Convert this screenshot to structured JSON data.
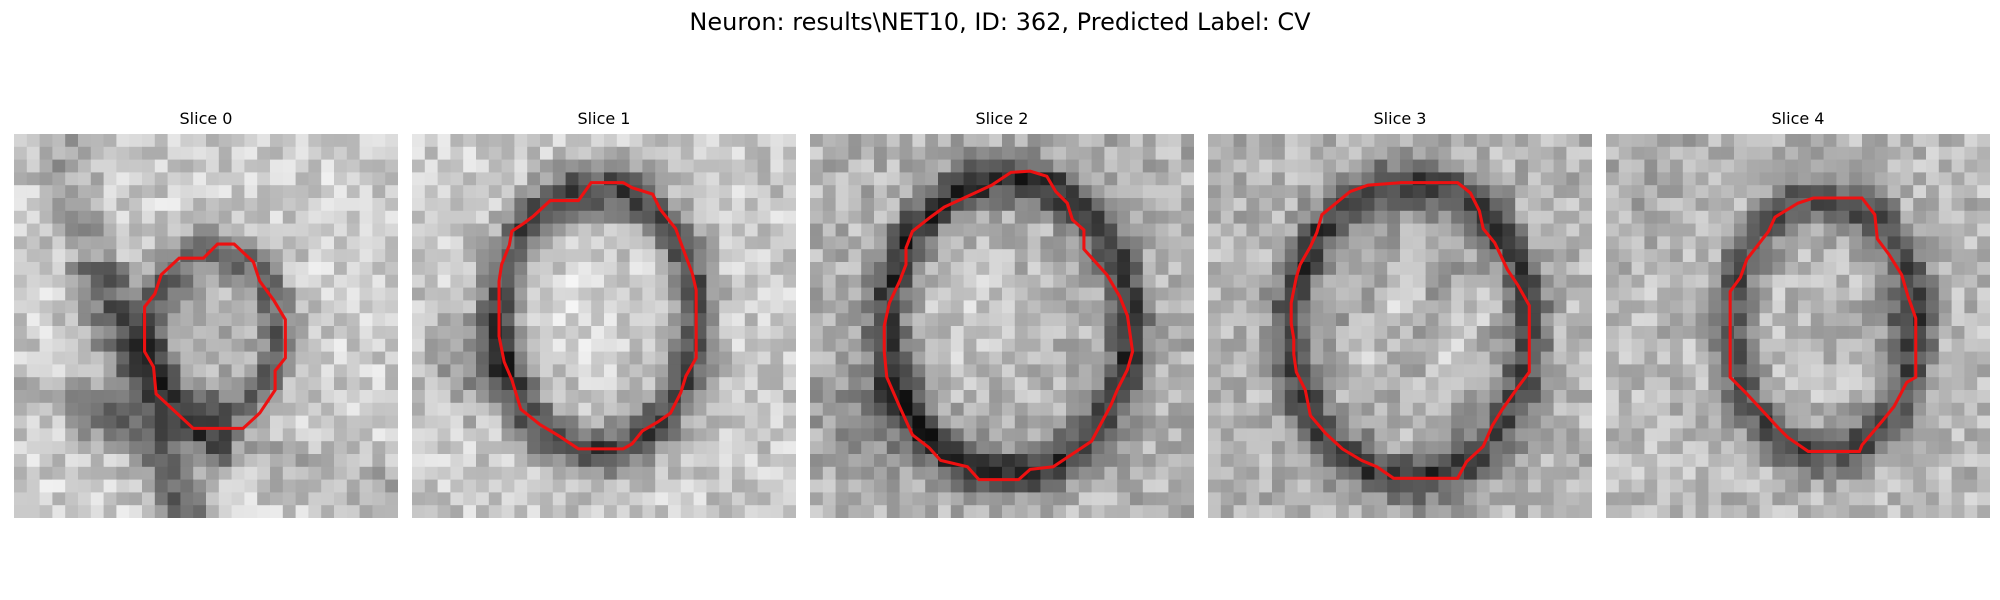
{
  "figure": {
    "title": "Neuron: results\\NET10, ID: 362, Predicted Label: CV"
  },
  "panels": [
    {
      "title": "Slice 0"
    },
    {
      "title": "Slice 1"
    },
    {
      "title": "Slice 2"
    },
    {
      "title": "Slice 3"
    },
    {
      "title": "Slice 4"
    }
  ],
  "colors": {
    "contour": "#ee1111",
    "background": "#ffffff"
  }
}
